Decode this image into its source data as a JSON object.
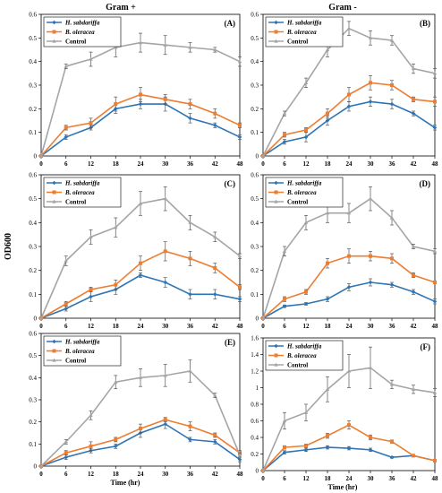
{
  "figure": {
    "col_titles": [
      "Gram +",
      "Gram -"
    ],
    "ylabel": "OD600",
    "xlabel": "Time (hr)"
  },
  "colors": {
    "H. sabdariffa": "#2e75b6",
    "B. oleracea": "#ed7d31",
    "Control": "#a5a5a5"
  },
  "chart_data": [
    {
      "type": "line",
      "panel": "(A)",
      "x": [
        0,
        6,
        12,
        18,
        24,
        30,
        36,
        42,
        48
      ],
      "xlim": [
        0,
        48
      ],
      "ylim": [
        0,
        0.6
      ],
      "yticks": [
        0,
        0.1,
        0.2,
        0.3,
        0.4,
        0.5,
        0.6
      ],
      "grid": false,
      "legend": "top-left",
      "series": [
        {
          "name": "H. sabdariffa",
          "values": [
            0,
            0.08,
            0.12,
            0.2,
            0.22,
            0.22,
            0.16,
            0.13,
            0.08
          ],
          "errors": [
            0,
            0.01,
            0.01,
            0.02,
            0.02,
            0.03,
            0.02,
            0.01,
            0.01
          ]
        },
        {
          "name": "B. oleracea",
          "values": [
            0,
            0.12,
            0.14,
            0.22,
            0.26,
            0.24,
            0.22,
            0.18,
            0.13
          ],
          "errors": [
            0,
            0.01,
            0.02,
            0.03,
            0.03,
            0.02,
            0.02,
            0.02,
            0.01
          ]
        },
        {
          "name": "Control",
          "values": [
            0,
            0.38,
            0.41,
            0.46,
            0.48,
            0.47,
            0.46,
            0.45,
            0.4
          ],
          "errors": [
            0,
            0.01,
            0.03,
            0.04,
            0.04,
            0.04,
            0.02,
            0.01,
            0.02
          ]
        }
      ]
    },
    {
      "type": "line",
      "panel": "(B)",
      "x": [
        0,
        6,
        12,
        18,
        24,
        30,
        36,
        42,
        48
      ],
      "xlim": [
        0,
        48
      ],
      "ylim": [
        0,
        0.6
      ],
      "yticks": [
        0,
        0.1,
        0.2,
        0.3,
        0.4,
        0.5,
        0.6
      ],
      "grid": false,
      "legend": "top-left",
      "series": [
        {
          "name": "H. sabdariffa",
          "values": [
            0,
            0.06,
            0.08,
            0.15,
            0.21,
            0.23,
            0.22,
            0.18,
            0.12
          ],
          "errors": [
            0,
            0.01,
            0.02,
            0.02,
            0.02,
            0.02,
            0.02,
            0.01,
            0.01
          ]
        },
        {
          "name": "B. oleracea",
          "values": [
            0,
            0.09,
            0.11,
            0.18,
            0.26,
            0.31,
            0.3,
            0.24,
            0.23
          ],
          "errors": [
            0,
            0.01,
            0.01,
            0.02,
            0.03,
            0.03,
            0.02,
            0.01,
            0.02
          ]
        },
        {
          "name": "Control",
          "values": [
            0,
            0.18,
            0.31,
            0.45,
            0.54,
            0.5,
            0.49,
            0.37,
            0.35
          ],
          "errors": [
            0,
            0.01,
            0.02,
            0.03,
            0.03,
            0.03,
            0.02,
            0.02,
            0.02
          ]
        }
      ]
    },
    {
      "type": "line",
      "panel": "(C)",
      "x": [
        0,
        6,
        12,
        18,
        24,
        30,
        36,
        42,
        48
      ],
      "xlim": [
        0,
        48
      ],
      "ylim": [
        0,
        0.6
      ],
      "yticks": [
        0,
        0.1,
        0.2,
        0.3,
        0.4,
        0.5,
        0.6
      ],
      "grid": false,
      "legend": "top-left",
      "series": [
        {
          "name": "H. sabdariffa",
          "values": [
            0,
            0.04,
            0.09,
            0.12,
            0.18,
            0.15,
            0.1,
            0.1,
            0.08
          ],
          "errors": [
            0,
            0.01,
            0.02,
            0.02,
            0.01,
            0.02,
            0.02,
            0.02,
            0.01
          ]
        },
        {
          "name": "B. oleracea",
          "values": [
            0,
            0.06,
            0.12,
            0.14,
            0.23,
            0.28,
            0.25,
            0.21,
            0.13
          ],
          "errors": [
            0,
            0.01,
            0.01,
            0.02,
            0.03,
            0.04,
            0.03,
            0.02,
            0.01
          ]
        },
        {
          "name": "Control",
          "values": [
            0,
            0.24,
            0.34,
            0.38,
            0.48,
            0.5,
            0.4,
            0.34,
            0.26
          ],
          "errors": [
            0,
            0.02,
            0.03,
            0.04,
            0.05,
            0.05,
            0.03,
            0.02,
            0.01
          ]
        }
      ]
    },
    {
      "type": "line",
      "panel": "(D)",
      "x": [
        0,
        6,
        12,
        18,
        24,
        30,
        36,
        42,
        48
      ],
      "xlim": [
        0,
        48
      ],
      "ylim": [
        0,
        0.6
      ],
      "yticks": [
        0,
        0.1,
        0.2,
        0.3,
        0.4,
        0.5,
        0.6
      ],
      "grid": false,
      "legend": "top-left",
      "series": [
        {
          "name": "H. sabdariffa",
          "values": [
            0,
            0.05,
            0.06,
            0.08,
            0.13,
            0.15,
            0.14,
            0.11,
            0.07
          ],
          "errors": [
            0,
            0.005,
            0.005,
            0.01,
            0.015,
            0.015,
            0.01,
            0.01,
            0.01
          ]
        },
        {
          "name": "B. oleracea",
          "values": [
            0,
            0.08,
            0.11,
            0.23,
            0.26,
            0.26,
            0.25,
            0.18,
            0.15
          ],
          "errors": [
            0,
            0.01,
            0.01,
            0.02,
            0.03,
            0.02,
            0.02,
            0.01,
            0.005
          ]
        },
        {
          "name": "Control",
          "values": [
            0,
            0.28,
            0.4,
            0.44,
            0.44,
            0.5,
            0.42,
            0.3,
            0.28
          ],
          "errors": [
            0,
            0.02,
            0.03,
            0.04,
            0.04,
            0.05,
            0.03,
            0.01,
            0.01
          ]
        }
      ]
    },
    {
      "type": "line",
      "panel": "(E)",
      "x": [
        0,
        6,
        12,
        18,
        24,
        30,
        36,
        42,
        48
      ],
      "xlim": [
        0,
        48
      ],
      "ylim": [
        0,
        0.6
      ],
      "yticks": [
        0,
        0.1,
        0.2,
        0.3,
        0.4,
        0.5,
        0.6
      ],
      "grid": false,
      "legend": "top-left",
      "series": [
        {
          "name": "H. sabdariffa",
          "values": [
            0,
            0.04,
            0.07,
            0.09,
            0.15,
            0.19,
            0.12,
            0.11,
            0.03
          ],
          "errors": [
            0,
            0.01,
            0.01,
            0.01,
            0.02,
            0.02,
            0.01,
            0.01,
            0.01
          ]
        },
        {
          "name": "B. oleracea",
          "values": [
            0,
            0.06,
            0.09,
            0.12,
            0.17,
            0.21,
            0.18,
            0.14,
            0.06
          ],
          "errors": [
            0,
            0.01,
            0.02,
            0.01,
            0.02,
            0.01,
            0.02,
            0.01,
            0.01
          ]
        },
        {
          "name": "Control",
          "values": [
            0,
            0.11,
            0.23,
            0.38,
            0.4,
            0.41,
            0.43,
            0.32,
            0.05
          ],
          "errors": [
            0,
            0.01,
            0.02,
            0.03,
            0.04,
            0.05,
            0.05,
            0.01,
            0.01
          ]
        }
      ]
    },
    {
      "type": "line",
      "panel": "(F)",
      "x": [
        0,
        6,
        12,
        18,
        24,
        30,
        36,
        42,
        48
      ],
      "xlim": [
        0,
        48
      ],
      "ylim": [
        0,
        1.6
      ],
      "yticks": [
        0,
        0.2,
        0.4,
        0.6,
        0.8,
        1,
        1.2,
        1.4,
        1.6
      ],
      "grid": false,
      "legend": "top-left",
      "series": [
        {
          "name": "H. sabdariffa",
          "values": [
            0,
            0.22,
            0.25,
            0.28,
            0.27,
            0.25,
            0.16,
            0.18,
            0.12
          ],
          "errors": [
            0,
            0.02,
            0.02,
            0.02,
            0.02,
            0.02,
            0.01,
            0.01,
            0.01
          ]
        },
        {
          "name": "B. oleracea",
          "values": [
            0,
            0.28,
            0.3,
            0.42,
            0.55,
            0.4,
            0.35,
            0.18,
            0.12
          ],
          "errors": [
            0,
            0.02,
            0.02,
            0.03,
            0.05,
            0.03,
            0.02,
            0.01,
            0.01
          ]
        },
        {
          "name": "Control",
          "values": [
            0,
            0.6,
            0.7,
            0.98,
            1.2,
            1.24,
            1.04,
            0.98,
            0.94
          ],
          "errors": [
            0,
            0.1,
            0.1,
            0.15,
            0.2,
            0.25,
            0.05,
            0.05,
            0.05
          ]
        }
      ]
    }
  ]
}
